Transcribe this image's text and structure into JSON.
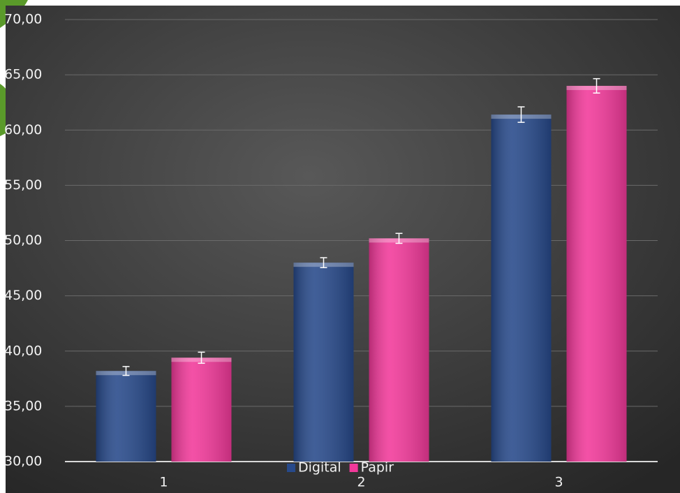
{
  "chart_data": {
    "type": "bar",
    "categories": [
      "1",
      "2",
      "3"
    ],
    "series": [
      {
        "name": "Digital",
        "color": "#27498a",
        "values": [
          38.2,
          48.0,
          61.4
        ],
        "errors": [
          0.4,
          0.45,
          0.7
        ]
      },
      {
        "name": "Papir",
        "color": "#f2399a",
        "values": [
          39.4,
          50.2,
          64.0
        ],
        "errors": [
          0.5,
          0.45,
          0.65
        ]
      }
    ],
    "ylim": [
      30,
      70
    ],
    "yticks": [
      {
        "value": 30,
        "label": "30,00"
      },
      {
        "value": 35,
        "label": "35,00"
      },
      {
        "value": 40,
        "label": "40,00"
      },
      {
        "value": 45,
        "label": "45,00"
      },
      {
        "value": 50,
        "label": "50,00"
      },
      {
        "value": 55,
        "label": "55,00"
      },
      {
        "value": 60,
        "label": "60,00"
      },
      {
        "value": 65,
        "label": "65,00"
      },
      {
        "value": 70,
        "label": "70,00"
      }
    ],
    "grid": true,
    "legend": "bottom"
  }
}
